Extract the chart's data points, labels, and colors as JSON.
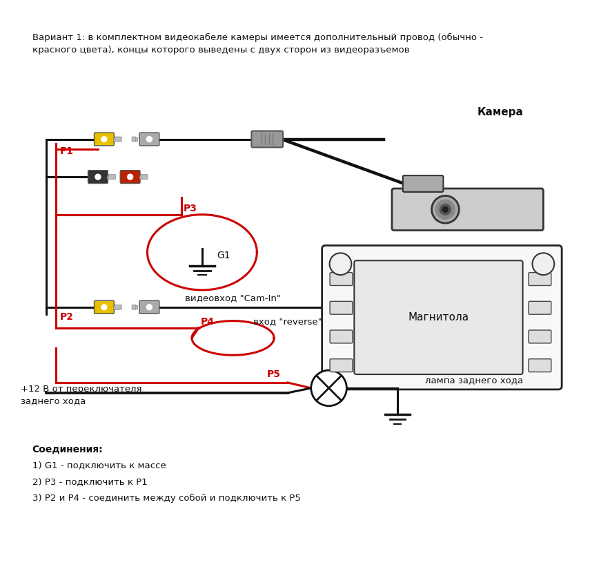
{
  "title_line1": "Вариант 1: в комплектном видеокабеле камеры имеется дополнительный провод (обычно -",
  "title_line2": "красного цвета), концы которого выведены с двух сторон из видеоразъемов",
  "label_kamera": "Камера",
  "label_magnitola": "Магнитола",
  "label_cam_in": "видеовход \"Cam-In\"",
  "label_reverse": "вход \"reverse\"",
  "label_lampa": "лампа заднего хода",
  "label_12v_1": "+12 В от переключателя",
  "label_12v_2": "заднего хода",
  "label_P1": "P1",
  "label_P2": "P2",
  "label_P3": "P3",
  "label_P4": "P4",
  "label_P5": "P5",
  "label_G1": "G1",
  "connections_title": "Соединения:",
  "conn1": "1) G1 - подключить к массе",
  "conn2": "2) Р3 - подключить к Р1",
  "conn3": "3) Р2 и Р4 - соединить между собой и подключить к Р5",
  "bg_color": "#ffffff",
  "wire_black": "#111111",
  "wire_red": "#cc0000",
  "rca_yellow": "#e8c000",
  "rca_gray": "#aaaaaa",
  "rca_black_col": "#333333",
  "rca_red_col": "#bb2200",
  "text_color": "#111111",
  "label_red_color": "#cc0000"
}
